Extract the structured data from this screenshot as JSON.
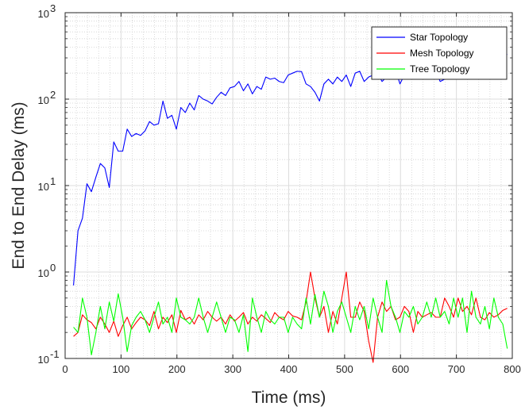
{
  "chart_data": {
    "type": "line",
    "title": "",
    "xlabel": "Time (ms)",
    "ylabel": "End to End Delay (ms)",
    "xlim": [
      0,
      800
    ],
    "ylim": [
      0.1,
      1000
    ],
    "yscale": "log",
    "grid": true,
    "minor_grid": true,
    "legend_position": "top-right",
    "x_ticks": [
      "0",
      "100",
      "200",
      "300",
      "400",
      "500",
      "600",
      "700",
      "800"
    ],
    "y_ticks": [
      {
        "base": "10",
        "exp": "-1"
      },
      {
        "base": "10",
        "exp": "0"
      },
      {
        "base": "10",
        "exp": "1"
      },
      {
        "base": "10",
        "exp": "2"
      },
      {
        "base": "10",
        "exp": "3"
      }
    ],
    "x": [
      15,
      23,
      31,
      39,
      47,
      55,
      63,
      71,
      79,
      87,
      95,
      103,
      111,
      119,
      127,
      135,
      143,
      151,
      159,
      167,
      175,
      183,
      191,
      199,
      207,
      215,
      223,
      231,
      239,
      247,
      255,
      263,
      271,
      279,
      287,
      295,
      303,
      311,
      319,
      327,
      335,
      343,
      351,
      359,
      367,
      375,
      383,
      391,
      399,
      407,
      415,
      423,
      431,
      439,
      447,
      455,
      463,
      471,
      479,
      487,
      495,
      503,
      511,
      519,
      527,
      535,
      543,
      551,
      559,
      567,
      575,
      583,
      591,
      599,
      607,
      615,
      623,
      631,
      639,
      647,
      655,
      663,
      671,
      679,
      687,
      695,
      703,
      711,
      719,
      727,
      735,
      743,
      751,
      759,
      767,
      775,
      783,
      791
    ],
    "series": [
      {
        "name": "Star Topology",
        "color": "#0000ff",
        "values": [
          0.7,
          3.0,
          4.2,
          10.5,
          8.5,
          12.5,
          18,
          16,
          9.5,
          32,
          25,
          25,
          45,
          37,
          40,
          38,
          43,
          55,
          50,
          52,
          95,
          60,
          65,
          45,
          80,
          70,
          90,
          75,
          110,
          100,
          95,
          88,
          105,
          120,
          110,
          135,
          140,
          160,
          125,
          150,
          115,
          140,
          130,
          180,
          170,
          175,
          160,
          155,
          190,
          200,
          210,
          208,
          150,
          140,
          120,
          95,
          150,
          170,
          150,
          180,
          160,
          190,
          140,
          200,
          210,
          160,
          180,
          190,
          200,
          160,
          180,
          200,
          220,
          150,
          190,
          210,
          180,
          200,
          170,
          190,
          200,
          210,
          160,
          170,
          180,
          200,
          230,
          210,
          250,
          220,
          260,
          280,
          240,
          300,
          280,
          350,
          310,
          330
        ]
      },
      {
        "name": "Mesh Topology",
        "color": "#ff0000",
        "values": [
          0.18,
          0.2,
          0.32,
          0.28,
          0.26,
          0.22,
          0.3,
          0.25,
          0.2,
          0.27,
          0.18,
          0.24,
          0.3,
          0.22,
          0.26,
          0.3,
          0.28,
          0.24,
          0.35,
          0.22,
          0.3,
          0.26,
          0.32,
          0.2,
          0.36,
          0.28,
          0.3,
          0.25,
          0.32,
          0.28,
          0.35,
          0.3,
          0.27,
          0.3,
          0.25,
          0.32,
          0.27,
          0.3,
          0.34,
          0.25,
          0.3,
          0.27,
          0.32,
          0.29,
          0.26,
          0.34,
          0.3,
          0.28,
          0.35,
          0.31,
          0.3,
          0.28,
          0.45,
          1.0,
          0.5,
          0.3,
          0.4,
          0.2,
          0.35,
          0.25,
          0.5,
          1.0,
          0.3,
          0.3,
          0.45,
          0.35,
          0.16,
          0.09,
          0.3,
          0.45,
          0.35,
          0.4,
          0.28,
          0.3,
          0.4,
          0.35,
          0.2,
          0.35,
          0.3,
          0.32,
          0.34,
          0.3,
          0.3,
          0.5,
          0.4,
          0.3,
          0.5,
          0.35,
          0.4,
          0.32,
          0.5,
          0.3,
          0.28,
          0.34,
          0.3,
          0.32,
          0.36,
          0.38
        ]
      },
      {
        "name": "Tree Topology",
        "color": "#00ff00",
        "values": [
          0.23,
          0.2,
          0.5,
          0.3,
          0.11,
          0.2,
          0.4,
          0.22,
          0.45,
          0.27,
          0.56,
          0.3,
          0.12,
          0.24,
          0.3,
          0.35,
          0.28,
          0.2,
          0.3,
          0.45,
          0.25,
          0.3,
          0.2,
          0.5,
          0.3,
          0.28,
          0.25,
          0.3,
          0.5,
          0.3,
          0.2,
          0.3,
          0.45,
          0.3,
          0.2,
          0.3,
          0.28,
          0.2,
          0.32,
          0.12,
          0.5,
          0.3,
          0.2,
          0.35,
          0.28,
          0.25,
          0.3,
          0.3,
          0.2,
          0.3,
          0.25,
          0.22,
          0.5,
          0.25,
          0.55,
          0.3,
          0.6,
          0.4,
          0.2,
          0.35,
          0.45,
          0.3,
          0.2,
          0.4,
          0.28,
          0.4,
          0.22,
          0.5,
          0.3,
          0.2,
          0.8,
          0.4,
          0.3,
          0.2,
          0.35,
          0.3,
          0.4,
          0.25,
          0.3,
          0.45,
          0.3,
          0.5,
          0.3,
          0.35,
          0.25,
          0.5,
          0.3,
          0.5,
          0.2,
          0.6,
          0.3,
          0.25,
          0.4,
          0.22,
          0.5,
          0.3,
          0.25,
          0.13
        ]
      }
    ]
  }
}
